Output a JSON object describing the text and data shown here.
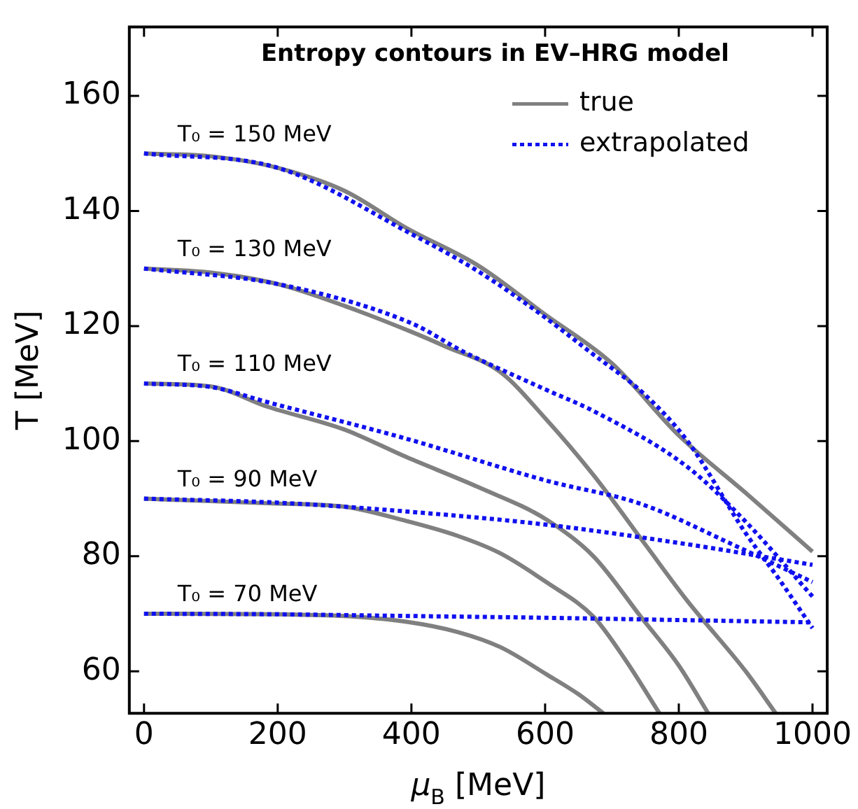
{
  "chart_data": {
    "type": "line",
    "title": "Entropy contours in EV–HRG model",
    "xlabel": "μ$_{B}$ [MeV]",
    "ylabel": "T [MeV]",
    "xlim": [
      -22,
      1022
    ],
    "ylim": [
      52.7,
      172
    ],
    "xticks": [
      0,
      200,
      400,
      600,
      800,
      1000
    ],
    "yticks": [
      60,
      80,
      100,
      120,
      140,
      160
    ],
    "legend": "top right",
    "series": [
      {
        "name": "true",
        "color": "#808080",
        "line_style": "solid",
        "x": [
          0,
          100,
          200,
          300,
          393,
          500,
          600,
          700,
          800,
          900,
          1000
        ],
        "values": [
          150,
          149.5,
          147.5,
          143.5,
          137,
          130.5,
          122,
          113.5,
          101,
          91,
          80.8
        ]
      },
      {
        "color": "#808080",
        "line_style": "solid",
        "x": [
          0,
          100,
          200,
          300,
          400,
          450,
          533,
          600,
          673,
          750,
          813,
          900,
          945
        ],
        "values": [
          130,
          129.3,
          127.3,
          123.5,
          119,
          116.5,
          112,
          104,
          94,
          82,
          72.2,
          60,
          52.7
        ]
      },
      {
        "color": "#808080",
        "line_style": "solid",
        "x": [
          0,
          100,
          184,
          300,
          393,
          500,
          603,
          673,
          743,
          800,
          844
        ],
        "values": [
          110,
          109.5,
          106,
          102,
          97.2,
          92,
          86.3,
          79.9,
          69.5,
          61,
          52.7
        ]
      },
      {
        "color": "#808080",
        "line_style": "solid",
        "x": [
          0,
          184,
          300,
          393,
          470,
          533,
          603,
          673,
          720,
          771
        ],
        "values": [
          90,
          89.2,
          88.6,
          86.1,
          83.5,
          80.5,
          75.4,
          69.4,
          62,
          52.7
        ]
      },
      {
        "color": "#808080",
        "line_style": "solid",
        "x": [
          0,
          200,
          300,
          393,
          470,
          533,
          603,
          650,
          687
        ],
        "values": [
          70,
          69.9,
          69.6,
          68.6,
          66.8,
          64.2,
          59.4,
          56,
          52.7
        ]
      },
      {
        "name": "extrapolated",
        "color": "#1010f0",
        "line_style": "dotted",
        "x": [
          0,
          200,
          400,
          500,
          600,
          666,
          750,
          813,
          900,
          950,
          1000
        ],
        "values": [
          150,
          147.5,
          136,
          129.5,
          121.5,
          115.6,
          108,
          100,
          84,
          76,
          67.5
        ]
      },
      {
        "color": "#1010f0",
        "line_style": "dotted",
        "x": [
          0,
          200,
          400,
          477,
          600,
          673,
          813,
          900,
          1000
        ],
        "values": [
          130,
          127.3,
          120.5,
          115.6,
          109,
          105.2,
          95.5,
          86,
          73
        ]
      },
      {
        "color": "#1010f0",
        "line_style": "dotted",
        "x": [
          0,
          100,
          184,
          393,
          603,
          743,
          883,
          1000
        ],
        "values": [
          110,
          109.4,
          106.8,
          100.4,
          93.1,
          89.1,
          81.9,
          75.5
        ]
      },
      {
        "color": "#1010f0",
        "line_style": "dotted",
        "x": [
          0,
          200,
          400,
          600,
          800,
          1000
        ],
        "values": [
          90,
          89.3,
          87.7,
          85.5,
          82.3,
          78.5
        ]
      },
      {
        "color": "#1010f0",
        "line_style": "dotted",
        "x": [
          0,
          200,
          400,
          600,
          800,
          1000
        ],
        "values": [
          70,
          69.9,
          69.6,
          69.3,
          68.9,
          68.5
        ]
      }
    ],
    "annotations": [
      "T₀ = 150 MeV",
      "T₀ = 130 MeV",
      "T₀ = 110 MeV",
      "T₀ = 90 MeV",
      "T₀ = 70 MeV"
    ]
  }
}
